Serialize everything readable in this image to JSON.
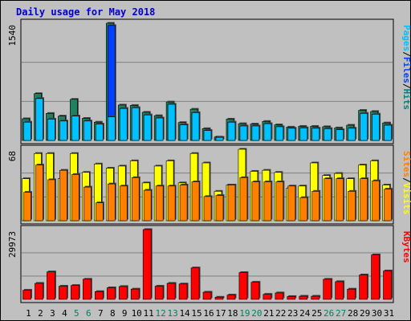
{
  "chart_data": {
    "type": "bar",
    "title": "Daily usage for May 2018",
    "categories": [
      "1",
      "2",
      "3",
      "4",
      "5",
      "6",
      "7",
      "8",
      "9",
      "10",
      "11",
      "12",
      "13",
      "14",
      "15",
      "16",
      "17",
      "18",
      "19",
      "20",
      "21",
      "22",
      "23",
      "24",
      "25",
      "26",
      "27",
      "28",
      "29",
      "30",
      "31"
    ],
    "weekend_days": [
      "5",
      "6",
      "12",
      "13",
      "19",
      "20",
      "26",
      "27"
    ],
    "panels": [
      {
        "id": "hits",
        "max_label": "1540",
        "ymax": 1540,
        "legend": [
          {
            "text": "Pages",
            "color": "#00c0ff"
          },
          {
            "text": "/",
            "color": "#000000"
          },
          {
            "text": "Files",
            "color": "#0040ff"
          },
          {
            "text": "/",
            "color": "#000000"
          },
          {
            "text": "Hits",
            "color": "#008080"
          }
        ],
        "series": [
          {
            "name": "Hits",
            "color": "#208060",
            "values": [
              285,
              615,
              355,
              320,
              540,
              290,
              240,
              1540,
              465,
              460,
              370,
              325,
              505,
              235,
              410,
              155,
              45,
              280,
              220,
              215,
              250,
              205,
              175,
              185,
              185,
              180,
              165,
              200,
              395,
              380,
              230
            ]
          },
          {
            "name": "Files",
            "color": "#0040ff",
            "values": [
              240,
              550,
              280,
              255,
              320,
              255,
              215,
              1510,
              420,
              430,
              335,
              295,
              475,
              205,
              365,
              130,
              40,
              240,
              190,
              190,
              220,
              180,
              160,
              165,
              160,
              155,
              140,
              160,
              355,
              345,
              200
            ]
          },
          {
            "name": "Pages",
            "color": "#00c0ff",
            "values": [
              240,
              550,
              280,
              255,
              320,
              255,
              215,
              310,
              420,
              430,
              335,
              295,
              475,
              205,
              365,
              130,
              40,
              240,
              190,
              190,
              220,
              180,
              160,
              165,
              160,
              155,
              140,
              160,
              355,
              345,
              200
            ]
          }
        ]
      },
      {
        "id": "visits",
        "max_label": "68",
        "ymax": 68,
        "legend": [
          {
            "text": "Sites",
            "color": "#ff8000"
          },
          {
            "text": "/",
            "color": "#000000"
          },
          {
            "text": "Visits",
            "color": "#ffff00"
          }
        ],
        "series": [
          {
            "name": "Visits",
            "color": "#ffff00",
            "values": [
              40,
              64,
              64,
              40,
              64,
              46,
              54,
              50,
              52,
              57,
              36,
              52,
              57,
              36,
              64,
              55,
              28,
              34,
              68,
              47,
              48,
              46,
              31,
              33,
              55,
              43,
              45,
              40,
              53,
              57,
              34
            ]
          },
          {
            "name": "Sites",
            "color": "#ff8000",
            "values": [
              27,
              53,
              39,
              48,
              44,
              32,
              17,
              35,
              33,
              41,
              29,
              33,
              33,
              34,
              37,
              23,
              24,
              34,
              41,
              37,
              37,
              37,
              33,
              22,
              28,
              40,
              40,
              28,
              40,
              38,
              30
            ]
          }
        ]
      },
      {
        "id": "kbytes",
        "max_label": "29973",
        "ymax": 29973,
        "legend": [
          {
            "text": "KBytes",
            "color": "#ff0000"
          }
        ],
        "series": [
          {
            "name": "KBytes",
            "color": "#ff0000",
            "values": [
              3920,
              6880,
              11800,
              5650,
              5960,
              8640,
              3340,
              4970,
              5520,
              4410,
              29973,
              5650,
              6880,
              6590,
              13500,
              3090,
              920,
              1850,
              11500,
              7350,
              2160,
              2770,
              1220,
              1350,
              1350,
              8630,
              7610,
              4400,
              10490,
              19100,
              12200
            ]
          }
        ]
      }
    ],
    "colors": {
      "background": "#c0c0c0",
      "title": "#0000cc",
      "weekend_label": "#00805f",
      "weekday_label": "#000000"
    }
  }
}
